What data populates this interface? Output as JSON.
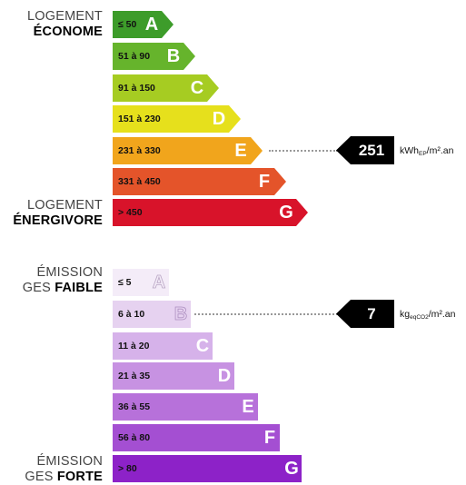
{
  "energy": {
    "top_label": {
      "line1": "LOGEMENT",
      "line2": "ÉCONOME"
    },
    "bottom_label": {
      "line1": "LOGEMENT",
      "line2": "ÉNERGIVORE"
    },
    "classes": [
      {
        "letter": "A",
        "range": "≤ 50",
        "color": "#3d9c2a"
      },
      {
        "letter": "B",
        "range": "51 à 90",
        "color": "#66b42c"
      },
      {
        "letter": "C",
        "range": "91 à 150",
        "color": "#a6cc22"
      },
      {
        "letter": "D",
        "range": "151 à 230",
        "color": "#e6e01c"
      },
      {
        "letter": "E",
        "range": "231 à 330",
        "color": "#f1a51c"
      },
      {
        "letter": "F",
        "range": "331 à 450",
        "color": "#e4542a"
      },
      {
        "letter": "G",
        "range": "> 450",
        "color": "#d8132a"
      }
    ],
    "current_class": "E",
    "value": "251",
    "unit_main": "kWh",
    "unit_sub": "EP",
    "unit_rest": "/m².an"
  },
  "ges": {
    "top_label": {
      "line1": "ÉMISSION",
      "line2_thin": "GES ",
      "line2_bold": "FAIBLE"
    },
    "bottom_label": {
      "line1": "ÉMISSION",
      "line2_thin": "GES ",
      "line2_bold": "FORTE"
    },
    "classes": [
      {
        "letter": "A",
        "range": "≤ 5",
        "color": "#f4ecf8"
      },
      {
        "letter": "B",
        "range": "6 à 10",
        "color": "#e6d2f0"
      },
      {
        "letter": "C",
        "range": "11 à 20",
        "color": "#d6b2ea"
      },
      {
        "letter": "D",
        "range": "21 à 35",
        "color": "#c792e2"
      },
      {
        "letter": "E",
        "range": "36 à 55",
        "color": "#b771da"
      },
      {
        "letter": "F",
        "range": "56 à 80",
        "color": "#a44fd2"
      },
      {
        "letter": "G",
        "range": "> 80",
        "color": "#8d22c8"
      }
    ],
    "current_class": "B",
    "value": "7",
    "unit_main": "kg",
    "unit_sub": "eqCO2",
    "unit_rest": "/m².an"
  }
}
